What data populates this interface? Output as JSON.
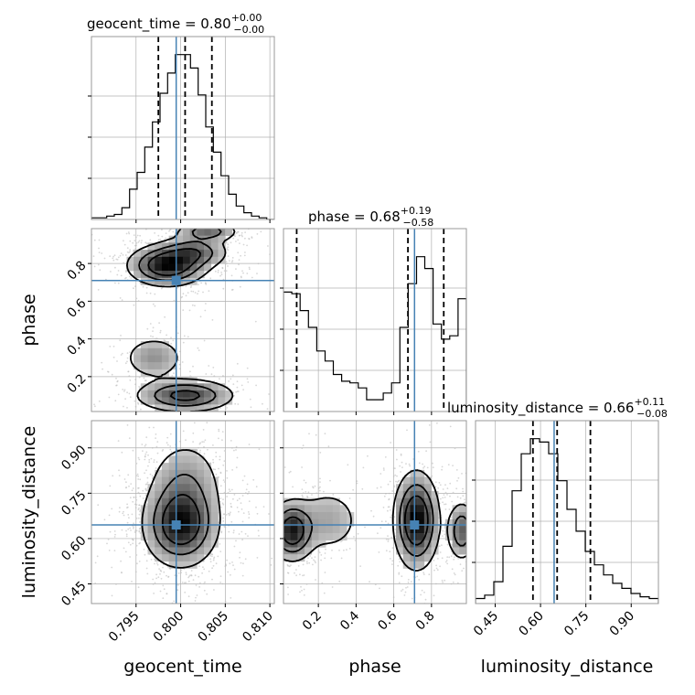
{
  "chart_data": {
    "type": "corner",
    "parameters": [
      "geocent_time",
      "phase",
      "luminosity_distance"
    ],
    "titles": [
      {
        "param": "geocent_time",
        "prefix": "geocent_time = 0.80",
        "sup": "+0.00",
        "sub": "−0.00"
      },
      {
        "param": "phase",
        "prefix": "phase = 0.68",
        "sup": "+0.19",
        "sub": "−0.58"
      },
      {
        "param": "luminosity_distance",
        "prefix": "luminosity_distance = 0.66",
        "sup": "+0.11",
        "sub": "−0.08"
      }
    ],
    "axis_labels": {
      "x": [
        "geocent_time",
        "phase",
        "luminosity_distance"
      ],
      "y": [
        "phase",
        "luminosity_distance"
      ]
    },
    "ranges": {
      "geocent_time": [
        0.79,
        0.8105
      ],
      "phase": [
        0.015,
        0.985
      ],
      "luminosity_distance": [
        0.385,
        0.99
      ]
    },
    "ticks": {
      "geocent_time": {
        "values": [
          0.795,
          0.8,
          0.805,
          0.81
        ],
        "labels": [
          "0.795",
          "0.800",
          "0.805",
          "0.810"
        ]
      },
      "phase": {
        "values": [
          0.2,
          0.4,
          0.6,
          0.8
        ],
        "labels": [
          "0.2",
          "0.4",
          "0.6",
          "0.8"
        ]
      },
      "luminosity_distance": {
        "values": [
          0.45,
          0.6,
          0.75,
          0.9
        ],
        "labels": [
          "0.45",
          "0.60",
          "0.75",
          "0.90"
        ]
      }
    },
    "truths": {
      "geocent_time": 0.7995,
      "phase": 0.71,
      "luminosity_distance": 0.645
    },
    "quantiles": {
      "geocent_time": [
        0.7975,
        0.8005,
        0.8035
      ],
      "phase": [
        0.085,
        0.675,
        0.865
      ],
      "luminosity_distance": [
        0.575,
        0.655,
        0.765
      ]
    },
    "histograms": {
      "geocent_time": [
        0.01,
        0.01,
        0.02,
        0.03,
        0.07,
        0.18,
        0.28,
        0.43,
        0.58,
        0.75,
        0.87,
        0.98,
        0.98,
        0.9,
        0.74,
        0.55,
        0.4,
        0.26,
        0.15,
        0.08,
        0.04,
        0.02,
        0.01,
        0.0
      ],
      "phase": [
        0.71,
        0.7,
        0.6,
        0.5,
        0.36,
        0.3,
        0.22,
        0.18,
        0.17,
        0.14,
        0.07,
        0.07,
        0.11,
        0.17,
        0.5,
        0.76,
        0.92,
        0.85,
        0.52,
        0.43,
        0.45,
        0.67
      ],
      "luminosity_distance": [
        0.03,
        0.05,
        0.13,
        0.34,
        0.67,
        0.89,
        0.98,
        0.96,
        0.89,
        0.73,
        0.56,
        0.43,
        0.31,
        0.23,
        0.17,
        0.12,
        0.09,
        0.06,
        0.04,
        0.03
      ]
    },
    "density_2d": {
      "phase_vs_geocent_time": [
        {
          "x": 0.7985,
          "y": 0.79,
          "sx": 0.0022,
          "sy": 0.055,
          "w": 1.0
        },
        {
          "x": 0.8015,
          "y": 0.86,
          "sx": 0.002,
          "sy": 0.045,
          "w": 0.55
        },
        {
          "x": 0.803,
          "y": 0.97,
          "sx": 0.0018,
          "sy": 0.03,
          "w": 0.5
        },
        {
          "x": 0.8005,
          "y": 0.1,
          "sx": 0.0028,
          "sy": 0.045,
          "w": 0.75
        },
        {
          "x": 0.797,
          "y": 0.3,
          "sx": 0.0018,
          "sy": 0.06,
          "w": 0.35
        }
      ],
      "luminosity_distance_vs_geocent_time": [
        {
          "x": 0.8,
          "y": 0.645,
          "sx": 0.0021,
          "sy": 0.07,
          "w": 1.0
        },
        {
          "x": 0.8005,
          "y": 0.78,
          "sx": 0.0022,
          "sy": 0.08,
          "w": 0.35
        }
      ],
      "luminosity_distance_vs_phase": [
        {
          "x": 0.72,
          "y": 0.66,
          "sx": 0.06,
          "sy": 0.08,
          "w": 1.0
        },
        {
          "x": 0.06,
          "y": 0.625,
          "sx": 0.06,
          "sy": 0.05,
          "w": 0.85
        },
        {
          "x": 0.96,
          "y": 0.625,
          "sx": 0.04,
          "sy": 0.05,
          "w": 0.55
        },
        {
          "x": 0.25,
          "y": 0.66,
          "sx": 0.1,
          "sy": 0.06,
          "w": 0.25
        }
      ]
    },
    "contour_levels": [
      0.12,
      0.35,
      0.62
    ],
    "grid": true,
    "colors": {
      "truth": "#4682b4",
      "contour": "#000000",
      "hist": "#000000",
      "grid": "#b0b0b0",
      "frame": "#999999"
    }
  }
}
